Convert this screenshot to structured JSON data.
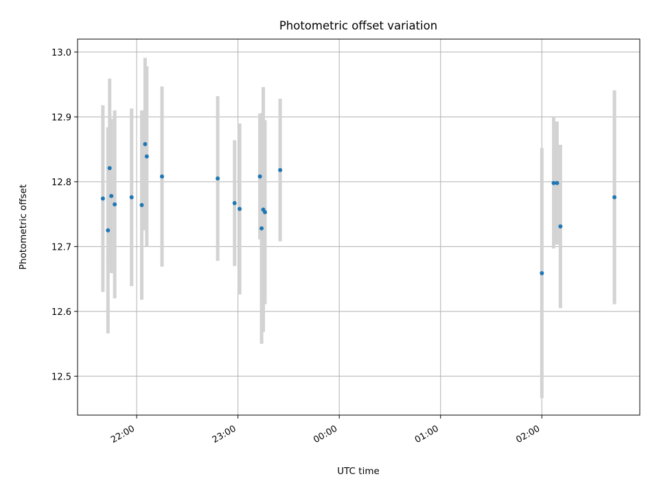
{
  "chart_data": {
    "type": "scatter",
    "title": "Photometric offset variation",
    "xlabel": "UTC time",
    "ylabel": "Photometric offset",
    "xlim": [
      "21:25",
      "02:58"
    ],
    "ylim": [
      12.44,
      13.02
    ],
    "grid": true,
    "x_ticks": [
      "22:00",
      "23:00",
      "00:00",
      "01:00",
      "02:00"
    ],
    "y_ticks": [
      "12.5",
      "12.6",
      "12.7",
      "12.8",
      "12.9",
      "13.0"
    ],
    "point_color": "#1f77b4",
    "errorbar_color": "#d3d3d3",
    "points": [
      {
        "x": "21:40",
        "y": 12.774,
        "err": 0.144
      },
      {
        "x": "21:43",
        "y": 12.725,
        "err": 0.159
      },
      {
        "x": "21:44",
        "y": 12.821,
        "err": 0.138
      },
      {
        "x": "21:45",
        "y": 12.778,
        "err": 0.119
      },
      {
        "x": "21:47",
        "y": 12.765,
        "err": 0.145
      },
      {
        "x": "21:57",
        "y": 12.776,
        "err": 0.137
      },
      {
        "x": "22:03",
        "y": 12.764,
        "err": 0.146
      },
      {
        "x": "22:05",
        "y": 12.858,
        "err": 0.133
      },
      {
        "x": "22:06",
        "y": 12.839,
        "err": 0.139
      },
      {
        "x": "22:15",
        "y": 12.808,
        "err": 0.139
      },
      {
        "x": "22:48",
        "y": 12.805,
        "err": 0.127
      },
      {
        "x": "22:58",
        "y": 12.767,
        "err": 0.097
      },
      {
        "x": "23:01",
        "y": 12.758,
        "err": 0.132
      },
      {
        "x": "23:13",
        "y": 12.808,
        "err": 0.097
      },
      {
        "x": "23:14",
        "y": 12.728,
        "err": 0.178
      },
      {
        "x": "23:15",
        "y": 12.757,
        "err": 0.189
      },
      {
        "x": "23:16",
        "y": 12.753,
        "err": 0.142
      },
      {
        "x": "23:25",
        "y": 12.818,
        "err": 0.11
      },
      {
        "x": "02:00",
        "y": 12.659,
        "err": 0.193
      },
      {
        "x": "02:07",
        "y": 12.798,
        "err": 0.101
      },
      {
        "x": "02:09",
        "y": 12.798,
        "err": 0.095
      },
      {
        "x": "02:11",
        "y": 12.731,
        "err": 0.126
      },
      {
        "x": "02:43",
        "y": 12.776,
        "err": 0.165
      }
    ]
  }
}
